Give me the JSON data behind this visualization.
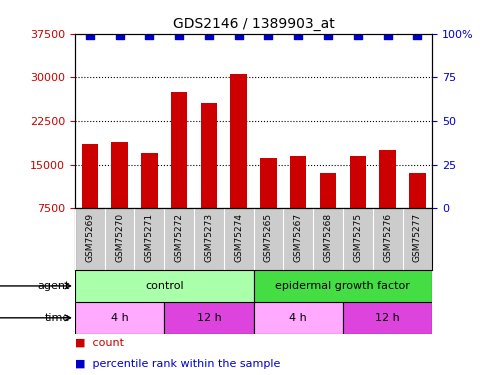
{
  "title": "GDS2146 / 1389903_at",
  "samples": [
    "GSM75269",
    "GSM75270",
    "GSM75271",
    "GSM75272",
    "GSM75273",
    "GSM75274",
    "GSM75265",
    "GSM75267",
    "GSM75268",
    "GSM75275",
    "GSM75276",
    "GSM75277"
  ],
  "counts": [
    18500,
    18800,
    17000,
    27500,
    25500,
    30500,
    16200,
    16500,
    13500,
    16500,
    17500,
    13500
  ],
  "percentiles": [
    98,
    98,
    98,
    98,
    98,
    98,
    98,
    98,
    98,
    98,
    98,
    98
  ],
  "bar_color": "#cc0000",
  "dot_color": "#0000cc",
  "ylim": [
    7500,
    37500
  ],
  "yticks": [
    7500,
    15000,
    22500,
    30000,
    37500
  ],
  "y2lim": [
    0,
    100
  ],
  "y2ticks": [
    0,
    25,
    50,
    75,
    100
  ],
  "agent_groups": [
    {
      "label": "control",
      "start": 0,
      "end": 6,
      "color": "#aaffaa"
    },
    {
      "label": "epidermal growth factor",
      "start": 6,
      "end": 12,
      "color": "#44dd44"
    }
  ],
  "time_groups": [
    {
      "label": "4 h",
      "start": 0,
      "end": 3,
      "color": "#ffaaff"
    },
    {
      "label": "12 h",
      "start": 3,
      "end": 6,
      "color": "#dd44dd"
    },
    {
      "label": "4 h",
      "start": 6,
      "end": 9,
      "color": "#ffaaff"
    },
    {
      "label": "12 h",
      "start": 9,
      "end": 12,
      "color": "#dd44dd"
    }
  ],
  "legend_items": [
    {
      "label": "count",
      "color": "#cc0000"
    },
    {
      "label": "percentile rank within the sample",
      "color": "#0000cc"
    }
  ],
  "bg_color": "#ffffff",
  "tick_color_left": "#cc0000",
  "tick_color_right": "#0000cc",
  "xlabel_area_color": "#cccccc",
  "bar_width": 0.55,
  "dot_size": 40
}
